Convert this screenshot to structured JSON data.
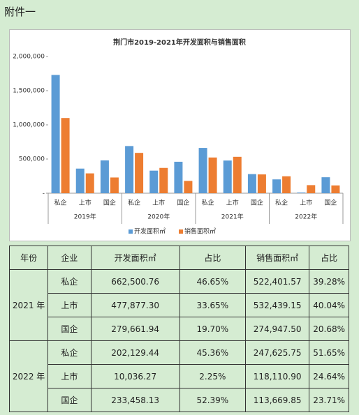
{
  "header": {
    "title": "附件一"
  },
  "chart_data": {
    "type": "bar",
    "title": "荆门市2019-2021年开发面积与销售面积",
    "categories": [
      "私企",
      "上市",
      "国企",
      "私企",
      "上市",
      "国企",
      "私企",
      "上市",
      "国企",
      "私企",
      "上市",
      "国企"
    ],
    "groups": [
      {
        "name": "2019年",
        "size": 3
      },
      {
        "name": "2020年",
        "size": 3
      },
      {
        "name": "2021年",
        "size": 3
      },
      {
        "name": "2022年",
        "size": 3
      }
    ],
    "series": [
      {
        "name": "开发面积㎡",
        "color": "#5b9bd5",
        "values": [
          1730000,
          360000,
          480000,
          690000,
          330000,
          460000,
          662500.76,
          477877.3,
          279661.94,
          202129.44,
          10036.27,
          233458.13
        ]
      },
      {
        "name": "销售面积㎡",
        "color": "#ed7d31",
        "values": [
          1100000,
          290000,
          230000,
          590000,
          370000,
          180000,
          522401.57,
          532439.15,
          274947.5,
          247625.75,
          118110.9,
          113669.85
        ]
      }
    ],
    "ylim": [
      0,
      2000000
    ],
    "yticks": [
      {
        "value": 0,
        "label": "-"
      },
      {
        "value": 500000,
        "label": "500,000"
      },
      {
        "value": 1000000,
        "label": "1,000,000"
      },
      {
        "value": 1500000,
        "label": "1,500,000"
      },
      {
        "value": 2000000,
        "label": "2,000,000"
      }
    ],
    "legend": "bottom",
    "grid": false
  },
  "table": {
    "header": [
      "年份",
      "企业",
      "开发面积㎡",
      "占比",
      "销售面积㎡",
      "占比"
    ],
    "groups": [
      {
        "year": "2021 年",
        "rows": [
          [
            "私企",
            "662,500.76",
            "46.65%",
            "522,401.57",
            "39.28%"
          ],
          [
            "上市",
            "477,877.30",
            "33.65%",
            "532,439.15",
            "40.04%"
          ],
          [
            "国企",
            "279,661.94",
            "19.70%",
            "274,947.50",
            "20.68%"
          ]
        ]
      },
      {
        "year": "2022 年",
        "rows": [
          [
            "私企",
            "202,129.44",
            "45.36%",
            "247,625.75",
            "51.65%"
          ],
          [
            "上市",
            "10,036.27",
            "2.25%",
            "118,110.90",
            "24.64%"
          ],
          [
            "国企",
            "233,458.13",
            "52.39%",
            "113,669.85",
            "23.71%"
          ]
        ]
      }
    ]
  }
}
